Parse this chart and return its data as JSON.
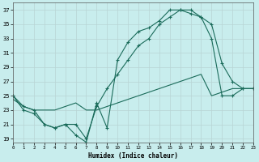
{
  "xlabel": "Humidex (Indice chaleur)",
  "xlim": [
    0,
    23
  ],
  "ylim": [
    18.5,
    38
  ],
  "xticks": [
    0,
    1,
    2,
    3,
    4,
    5,
    6,
    7,
    8,
    9,
    10,
    11,
    12,
    13,
    14,
    15,
    16,
    17,
    18,
    19,
    20,
    21,
    22,
    23
  ],
  "yticks": [
    19,
    21,
    23,
    25,
    27,
    29,
    31,
    33,
    35,
    37
  ],
  "bg_color": "#c8eded",
  "line_color": "#1a6b5a",
  "line1_x": [
    0,
    1,
    2,
    3,
    4,
    5,
    6,
    7,
    8,
    9,
    10,
    11,
    12,
    13,
    14,
    15,
    16,
    17,
    18,
    19,
    20,
    21,
    22,
    23
  ],
  "line1_y": [
    25,
    23,
    22.5,
    21,
    20.5,
    21,
    19.5,
    18.5,
    24,
    20.5,
    30,
    32.5,
    34,
    34.5,
    35.5,
    37,
    37,
    37,
    36,
    35,
    29.5,
    27,
    26,
    26
  ],
  "line2_x": [
    0,
    1,
    2,
    3,
    4,
    5,
    6,
    7,
    8,
    9,
    10,
    11,
    12,
    13,
    14,
    15,
    16,
    17,
    18,
    19,
    20,
    21,
    22,
    23
  ],
  "line2_y": [
    25,
    23.5,
    23,
    21,
    20.5,
    21,
    21,
    19,
    23.5,
    26,
    28,
    30,
    32,
    33,
    35,
    36,
    37,
    36.5,
    36,
    33,
    25,
    25,
    26,
    26
  ],
  "line3_x": [
    0,
    1,
    2,
    3,
    4,
    5,
    6,
    7,
    8,
    9,
    10,
    11,
    12,
    13,
    14,
    15,
    16,
    17,
    18,
    19,
    20,
    21,
    22,
    23
  ],
  "line3_y": [
    24.5,
    23.5,
    23,
    23,
    23,
    23.5,
    24,
    23,
    23,
    23.5,
    24,
    24.5,
    25,
    25.5,
    26,
    26.5,
    27,
    27.5,
    28,
    25,
    25.5,
    26,
    26,
    26
  ],
  "font_family": "monospace"
}
